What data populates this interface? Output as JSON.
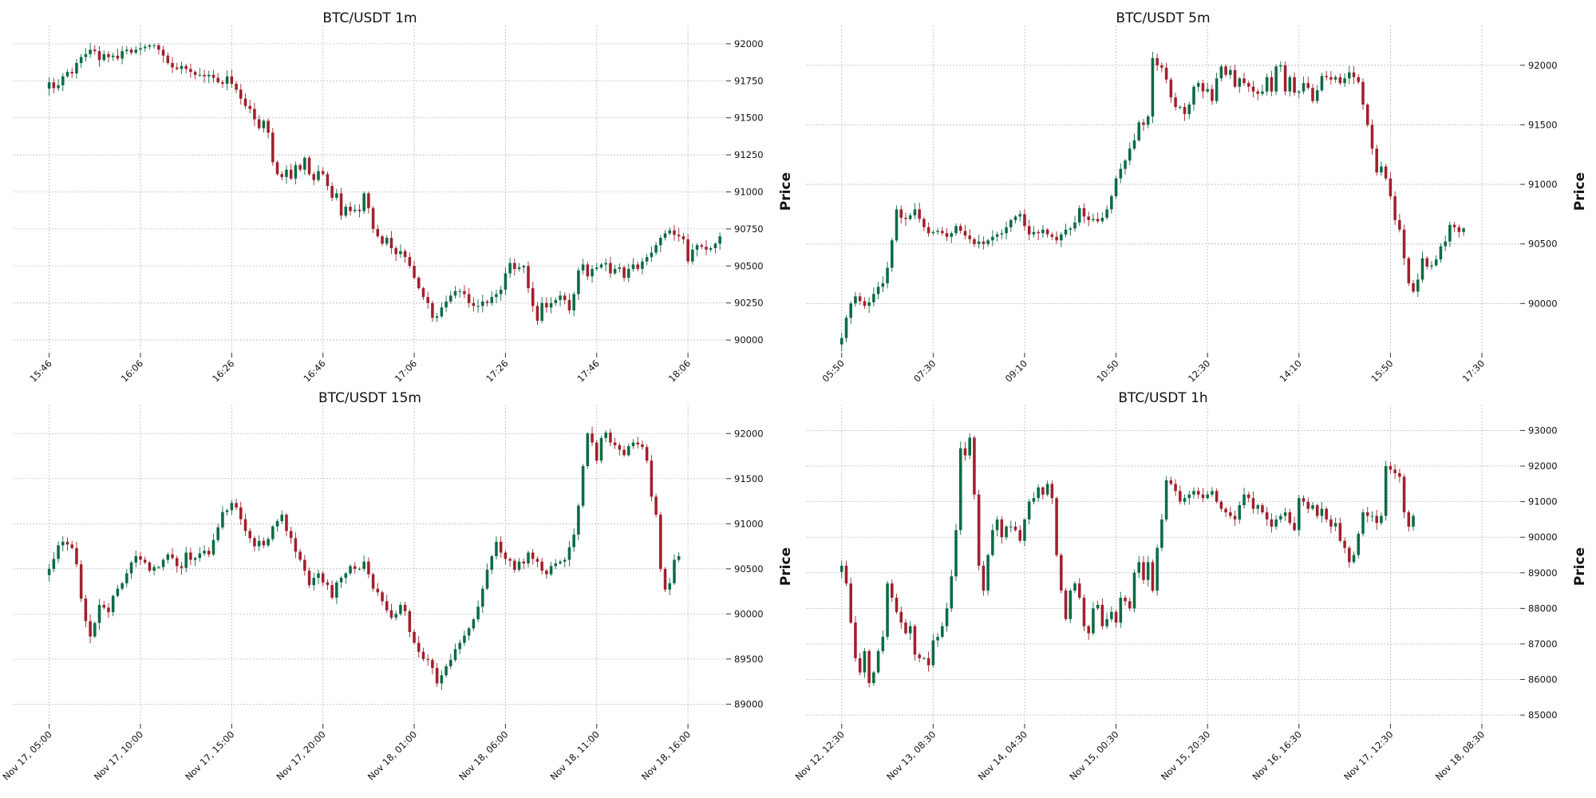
{
  "colors": {
    "up": "#0b6b45",
    "down": "#a0202c",
    "grid": "#b9b9b9",
    "text": "#111111",
    "background": "#ffffff"
  },
  "chart_data": [
    {
      "type": "candlestick",
      "title": "BTC/USDT 1m",
      "ylabel": "Price",
      "ylim": [
        89925,
        92080
      ],
      "grid": true,
      "y_ticks": [
        90000,
        90250,
        90500,
        90750,
        91000,
        91250,
        91500,
        91750,
        92000
      ],
      "x_ticks": [
        {
          "label": "15:46",
          "index": 0
        },
        {
          "label": "16:06",
          "index": 20
        },
        {
          "label": "16:26",
          "index": 40
        },
        {
          "label": "16:46",
          "index": 60
        },
        {
          "label": "17:06",
          "index": 80
        },
        {
          "label": "17:26",
          "index": 100
        },
        {
          "label": "17:46",
          "index": 120
        },
        {
          "label": "18:06",
          "index": 140
        }
      ],
      "close": [
        91740,
        91700,
        91720,
        91780,
        91810,
        91800,
        91870,
        91910,
        91930,
        91960,
        91950,
        91890,
        91930,
        91910,
        91920,
        91900,
        91950,
        91960,
        91940,
        91960,
        91970,
        91980,
        91990,
        91990,
        91960,
        91920,
        91870,
        91840,
        91830,
        91850,
        91830,
        91810,
        91790,
        91790,
        91780,
        91790,
        91770,
        91740,
        91730,
        91780,
        91730,
        91690,
        91630,
        91580,
        91560,
        91490,
        91430,
        91480,
        91400,
        91200,
        91120,
        91100,
        91150,
        91090,
        91180,
        91150,
        91230,
        91120,
        91080,
        91140,
        91120,
        91040,
        90960,
        90990,
        90840,
        90900,
        90870,
        90880,
        90870,
        90990,
        90890,
        90750,
        90700,
        90650,
        90690,
        90620,
        90580,
        90600,
        90560,
        90500,
        90420,
        90350,
        90290,
        90250,
        90150,
        90160,
        90220,
        90260,
        90300,
        90330,
        90330,
        90310,
        90250,
        90230,
        90230,
        90260,
        90250,
        90290,
        90310,
        90340,
        90450,
        90520,
        90480,
        90490,
        90500,
        90350,
        90230,
        90130,
        90250,
        90220,
        90250,
        90270,
        90300,
        90270,
        90200,
        90310,
        90470,
        90510,
        90430,
        90480,
        90490,
        90510,
        90520,
        90450,
        90480,
        90490,
        90420,
        90480,
        90510,
        90480,
        90530,
        90560,
        90590,
        90640,
        90690,
        90720,
        90740,
        90710,
        90700,
        90680,
        90530,
        90610,
        90640,
        90630,
        90610,
        90620,
        90650,
        90700
      ]
    },
    {
      "type": "candlestick",
      "title": "BTC/USDT 5m",
      "ylabel": "Price",
      "ylim": [
        89600,
        92280
      ],
      "grid": true,
      "y_ticks": [
        90000,
        90500,
        91000,
        91500,
        92000
      ],
      "x_ticks": [
        {
          "label": "05:50",
          "index": 0
        },
        {
          "label": "07:30",
          "index": 20
        },
        {
          "label": "09:10",
          "index": 40
        },
        {
          "label": "10:50",
          "index": 60
        },
        {
          "label": "12:30",
          "index": 80
        },
        {
          "label": "14:10",
          "index": 100
        },
        {
          "label": "15:50",
          "index": 120
        },
        {
          "label": "17:30",
          "index": 140
        }
      ],
      "close": [
        89710,
        89880,
        90000,
        90060,
        90020,
        89980,
        90010,
        90080,
        90140,
        90170,
        90300,
        90530,
        90790,
        90720,
        90710,
        90740,
        90790,
        90710,
        90640,
        90590,
        90600,
        90610,
        90590,
        90560,
        90590,
        90650,
        90610,
        90570,
        90540,
        90500,
        90520,
        90500,
        90530,
        90560,
        90580,
        90590,
        90640,
        90700,
        90730,
        90750,
        90650,
        90580,
        90600,
        90590,
        90620,
        90580,
        90560,
        90530,
        90580,
        90620,
        90630,
        90680,
        90800,
        90730,
        90700,
        90710,
        90690,
        90720,
        90790,
        90900,
        91050,
        91130,
        91200,
        91300,
        91370,
        91520,
        91500,
        91570,
        92060,
        92000,
        91980,
        91880,
        91730,
        91650,
        91650,
        91590,
        91670,
        91820,
        91850,
        91780,
        91800,
        91700,
        91890,
        91990,
        91920,
        91960,
        91820,
        91890,
        91850,
        91820,
        91780,
        91760,
        91780,
        91900,
        91780,
        91990,
        92000,
        91780,
        91900,
        91770,
        91780,
        91850,
        91810,
        91700,
        91790,
        91910,
        91900,
        91880,
        91900,
        91850,
        91890,
        91940,
        91900,
        91860,
        91670,
        91500,
        91300,
        91100,
        91150,
        91050,
        90900,
        90700,
        90620,
        90380,
        90170,
        90100,
        90200,
        90380,
        90310,
        90320,
        90370,
        90480,
        90520,
        90660,
        90640,
        90600,
        90630
      ]
    },
    {
      "type": "candlestick",
      "title": "BTC/USDT 15m",
      "ylabel": "Price",
      "ylim": [
        88800,
        92250
      ],
      "grid": true,
      "y_ticks": [
        89000,
        89500,
        90000,
        90500,
        91000,
        91500,
        92000
      ],
      "x_ticks": [
        {
          "label": "Nov 17, 05:00",
          "index": 0
        },
        {
          "label": "Nov 17, 10:00",
          "index": 20
        },
        {
          "label": "Nov 17, 15:00",
          "index": 40
        },
        {
          "label": "Nov 17, 20:00",
          "index": 60
        },
        {
          "label": "Nov 18, 01:00",
          "index": 80
        },
        {
          "label": "Nov 18, 06:00",
          "index": 100
        },
        {
          "label": "Nov 18, 11:00",
          "index": 120
        },
        {
          "label": "Nov 18, 16:00",
          "index": 140
        }
      ],
      "close": [
        90500,
        90610,
        90760,
        90800,
        90770,
        90730,
        90550,
        90170,
        89920,
        89750,
        89900,
        90100,
        90070,
        90020,
        90200,
        90280,
        90340,
        90450,
        90570,
        90640,
        90600,
        90570,
        90480,
        90520,
        90520,
        90600,
        90660,
        90620,
        90530,
        90510,
        90680,
        90600,
        90620,
        90670,
        90700,
        90660,
        90820,
        90960,
        91130,
        91150,
        91230,
        91180,
        91050,
        90920,
        90840,
        90750,
        90810,
        90760,
        90830,
        90970,
        91030,
        91100,
        90920,
        90840,
        90690,
        90600,
        90480,
        90320,
        90400,
        90450,
        90350,
        90320,
        90180,
        90350,
        90400,
        90450,
        90530,
        90500,
        90500,
        90580,
        90440,
        90280,
        90240,
        90140,
        90040,
        89960,
        90000,
        90100,
        90030,
        89800,
        89680,
        89580,
        89500,
        89490,
        89400,
        89230,
        89320,
        89420,
        89490,
        89610,
        89680,
        89760,
        89840,
        89940,
        90080,
        90280,
        90490,
        90640,
        90800,
        90680,
        90610,
        90590,
        90490,
        90580,
        90560,
        90680,
        90610,
        90580,
        90480,
        90440,
        90530,
        90560,
        90580,
        90600,
        90740,
        90880,
        91200,
        91640,
        92000,
        91900,
        91700,
        91950,
        92010,
        91900,
        91870,
        91820,
        91760,
        91860,
        91900,
        91880,
        91850,
        91700,
        91300,
        91100,
        90500,
        90270,
        90340,
        90600,
        90640
      ]
    },
    {
      "type": "candlestick",
      "title": "BTC/USDT 1h",
      "ylabel": "Price",
      "ylim": [
        84800,
        93550
      ],
      "grid": true,
      "y_ticks": [
        85000,
        86000,
        87000,
        88000,
        89000,
        90000,
        91000,
        92000,
        93000
      ],
      "x_ticks": [
        {
          "label": "Nov 12, 12:30",
          "index": 0
        },
        {
          "label": "Nov 13, 08:30",
          "index": 20
        },
        {
          "label": "Nov 14, 04:30",
          "index": 40
        },
        {
          "label": "Nov 15, 00:30",
          "index": 60
        },
        {
          "label": "Nov 15, 20:30",
          "index": 80
        },
        {
          "label": "Nov 16, 16:30",
          "index": 100
        },
        {
          "label": "Nov 17, 12:30",
          "index": 120
        },
        {
          "label": "Nov 18, 08:30",
          "index": 140
        }
      ],
      "close": [
        89200,
        88700,
        87600,
        86600,
        86200,
        86800,
        85900,
        86200,
        86800,
        87200,
        88700,
        88300,
        87900,
        87600,
        87300,
        87500,
        86700,
        86600,
        86600,
        86400,
        87100,
        87200,
        87500,
        88000,
        88900,
        90200,
        92500,
        92300,
        92800,
        91200,
        89200,
        88500,
        89500,
        90200,
        90500,
        90000,
        90300,
        90300,
        90200,
        89900,
        90500,
        91000,
        91100,
        91400,
        91200,
        91500,
        91100,
        89500,
        88500,
        87700,
        88500,
        88700,
        88300,
        87500,
        87300,
        88000,
        88100,
        87500,
        87700,
        87900,
        87600,
        88300,
        88200,
        88000,
        89000,
        89300,
        88800,
        89300,
        88500,
        89700,
        90500,
        91600,
        91500,
        91300,
        91000,
        91100,
        91200,
        91300,
        91200,
        91100,
        91200,
        91300,
        91000,
        90800,
        90700,
        90600,
        90500,
        90900,
        91200,
        91100,
        90800,
        90900,
        90700,
        90500,
        90300,
        90500,
        90600,
        90700,
        90400,
        90200,
        91100,
        91000,
        90800,
        90900,
        90600,
        90800,
        90500,
        90300,
        90400,
        89900,
        89700,
        89300,
        89500,
        90100,
        90700,
        90600,
        90600,
        90400,
        90600,
        92000,
        91900,
        91800,
        91700,
        90700,
        90300,
        90600
      ]
    }
  ]
}
